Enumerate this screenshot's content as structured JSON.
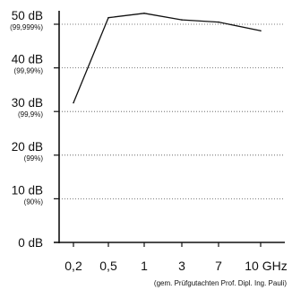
{
  "chart_data": {
    "type": "line",
    "title": "",
    "xlabel": "",
    "ylabel": "",
    "x": [
      "0,2",
      "0,5",
      "1",
      "3",
      "7",
      "10 GHz"
    ],
    "x_numeric": [
      0.2,
      0.5,
      1,
      3,
      7,
      10
    ],
    "x_scale": "categorical",
    "series": [
      {
        "values": [
          32,
          51.5,
          52.5,
          51,
          50.5,
          48.5
        ],
        "color": "#111111"
      }
    ],
    "ylim": [
      0,
      52
    ],
    "yticks": [
      {
        "value": 0,
        "label": "0 dB",
        "sub": ""
      },
      {
        "value": 10,
        "label": "10 dB",
        "sub": "(90%)"
      },
      {
        "value": 20,
        "label": "20 dB",
        "sub": "(99%)"
      },
      {
        "value": 30,
        "label": "30 dB",
        "sub": "(99,9%)"
      },
      {
        "value": 40,
        "label": "40 dB",
        "sub": "(99,99%)"
      },
      {
        "value": 50,
        "label": "50 dB",
        "sub": "(99,999%)"
      }
    ],
    "grid": "horizontal-dotted",
    "annotation": "(gem. Prüfgutachten Prof. Dipl. Ing. Pauli)"
  }
}
